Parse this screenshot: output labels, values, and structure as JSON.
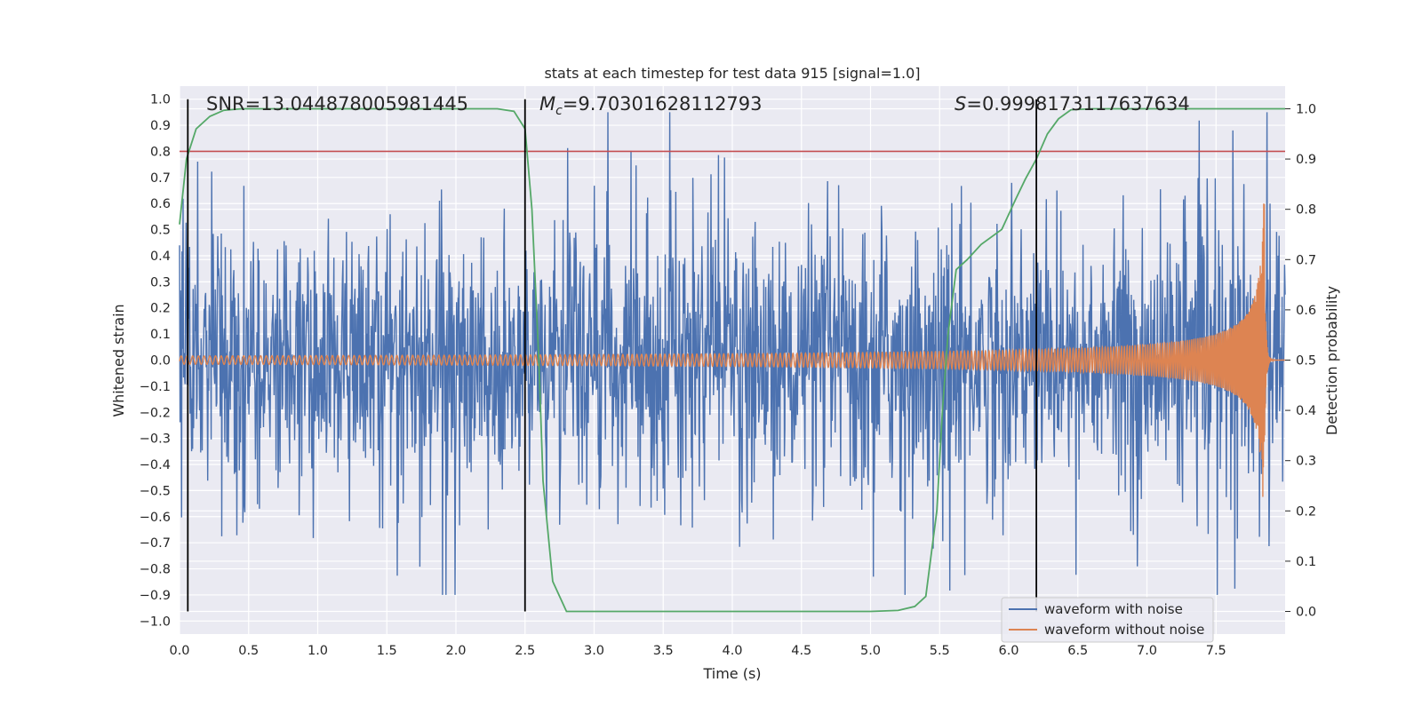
{
  "chart_data": {
    "type": "line",
    "title": "stats at each timestep for test data 915 [signal=1.0]",
    "xlabel": "Time (s)",
    "ylabel_left": "Whitened strain",
    "ylabel_right": "Detection probability",
    "xlim": [
      0.0,
      8.0
    ],
    "ylim_left": [
      -1.05,
      1.05
    ],
    "ylim_right": [
      -0.045,
      1.045
    ],
    "x_ticks": [
      "0.0",
      "0.5",
      "1.0",
      "1.5",
      "2.0",
      "2.5",
      "3.0",
      "3.5",
      "4.0",
      "4.5",
      "5.0",
      "5.5",
      "6.0",
      "6.5",
      "7.0",
      "7.5"
    ],
    "y_left_ticks": [
      "1.0",
      "0.9",
      "0.8",
      "0.7",
      "0.6",
      "0.5",
      "0.4",
      "0.3",
      "0.2",
      "0.1",
      "0.0",
      "−0.1",
      "−0.2",
      "−0.3",
      "−0.4",
      "−0.5",
      "−0.6",
      "−0.7",
      "−0.8",
      "−0.9",
      "−1.0"
    ],
    "y_right_ticks": [
      "1.0",
      "0.9",
      "0.8",
      "0.7",
      "0.6",
      "0.5",
      "0.4",
      "0.3",
      "0.2",
      "0.1",
      "0.0"
    ],
    "annotations": {
      "snr": "SNR=13.044878005981445",
      "mc_symbol": "M",
      "mc_sub": "c",
      "mc_value": "=9.70301628112793",
      "s_symbol": "S",
      "s_value": "=0.9998173117637634"
    },
    "threshold_line": {
      "y": 0.8,
      "color": "#c44e52"
    },
    "vertical_markers_x": [
      0.06,
      2.5,
      6.2
    ],
    "series": [
      {
        "name": "waveform with noise",
        "color": "#4c72b0",
        "description": "noisy whitened strain, approx range -0.9 to 0.95"
      },
      {
        "name": "waveform without noise",
        "color": "#dd8452",
        "description": "chirp signal, amplitude grows to ~0.6 at merger near 7.85 s"
      },
      {
        "name": "detection probability",
        "color": "#55a868",
        "axis": "right",
        "x": [
          0.0,
          0.05,
          0.12,
          0.22,
          0.32,
          0.45,
          0.7,
          1.0,
          1.5,
          2.0,
          2.3,
          2.42,
          2.5,
          2.55,
          2.6,
          2.63,
          2.7,
          2.8,
          3.0,
          4.0,
          5.0,
          5.2,
          5.32,
          5.4,
          5.48,
          5.52,
          5.56,
          5.62,
          5.7,
          5.8,
          5.95,
          6.05,
          6.12,
          6.2,
          6.28,
          6.36,
          6.45,
          6.6,
          7.0,
          7.5,
          8.0
        ],
        "y": [
          0.77,
          0.9,
          0.96,
          0.985,
          0.997,
          1.0,
          1.0,
          1.0,
          1.0,
          1.0,
          1.0,
          0.995,
          0.96,
          0.8,
          0.5,
          0.26,
          0.06,
          0.0,
          0.0,
          0.0,
          0.0,
          0.002,
          0.01,
          0.03,
          0.2,
          0.4,
          0.55,
          0.68,
          0.7,
          0.73,
          0.76,
          0.82,
          0.86,
          0.9,
          0.95,
          0.98,
          0.998,
          1.0,
          1.0,
          1.0,
          1.0
        ]
      }
    ],
    "legend": {
      "location": "lower-right"
    }
  }
}
